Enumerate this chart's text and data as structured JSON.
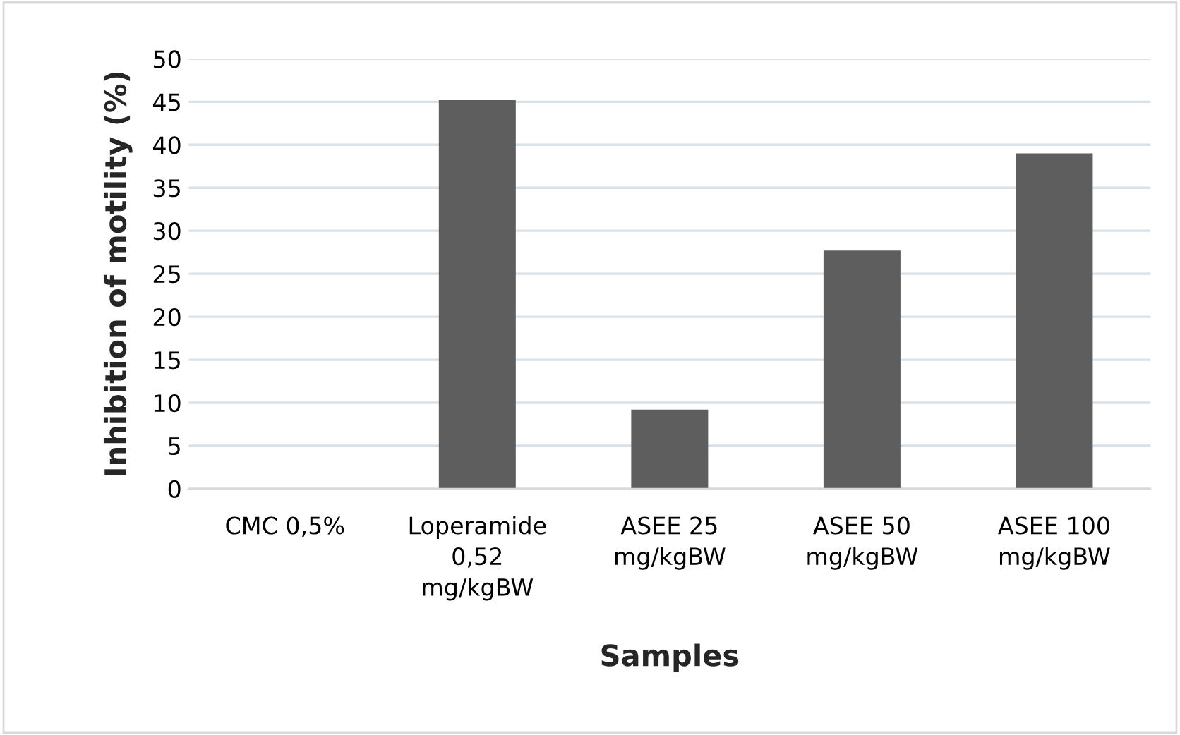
{
  "chart_data": {
    "type": "bar",
    "xlabel": "Samples",
    "ylabel": "Inhibition of motility (%)",
    "categories": [
      "CMC 0,5%",
      "Loperamide\n0,52\nmg/kgBW",
      "ASEE 25\nmg/kgBW",
      "ASEE 50\nmg/kgBW",
      "ASEE 100\nmg/kgBW"
    ],
    "values": [
      0,
      45.2,
      9.2,
      27.7,
      39.0
    ],
    "color": "#5e5e5e",
    "ylim": [
      0,
      50
    ],
    "yticks": [
      0,
      5,
      10,
      15,
      20,
      25,
      30,
      35,
      40,
      45,
      50
    ],
    "grid": "y"
  }
}
